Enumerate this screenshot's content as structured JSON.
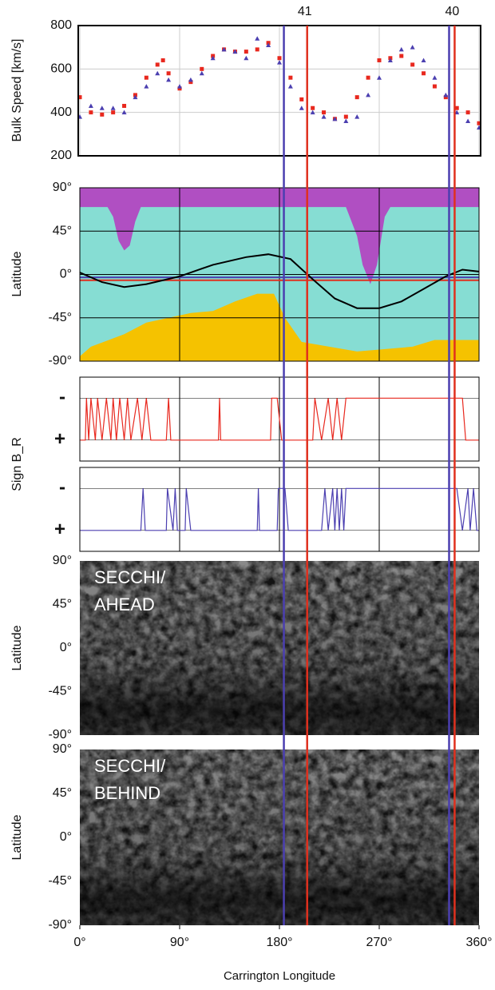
{
  "chart_data": [
    {
      "type": "scatter",
      "ylabel": "Bulk Speed [km/s]",
      "xlim": [
        0,
        360
      ],
      "ylim": [
        200,
        800
      ],
      "yticks": [
        200,
        400,
        600,
        800
      ],
      "grid": true,
      "series": [
        {
          "color": "#e8281e",
          "x": [
            0,
            10,
            20,
            30,
            40,
            50,
            60,
            70,
            75,
            80,
            90,
            100,
            110,
            120,
            130,
            140,
            150,
            160,
            170,
            180,
            190,
            200,
            210,
            220,
            230,
            240,
            250,
            260,
            270,
            280,
            290,
            300,
            310,
            320,
            330,
            340,
            350,
            360
          ],
          "values": [
            470,
            400,
            390,
            400,
            430,
            480,
            560,
            620,
            640,
            580,
            510,
            540,
            600,
            660,
            690,
            680,
            680,
            690,
            720,
            650,
            560,
            460,
            420,
            400,
            370,
            380,
            470,
            560,
            640,
            650,
            660,
            620,
            580,
            520,
            470,
            420,
            400,
            350
          ]
        },
        {
          "color": "#4b3fb0",
          "x": [
            0,
            10,
            20,
            30,
            40,
            50,
            60,
            70,
            80,
            90,
            100,
            110,
            120,
            130,
            140,
            150,
            160,
            170,
            180,
            190,
            200,
            210,
            220,
            230,
            240,
            250,
            260,
            270,
            280,
            290,
            300,
            310,
            320,
            330,
            340,
            350,
            360
          ],
          "values": [
            380,
            430,
            420,
            420,
            400,
            470,
            520,
            580,
            550,
            520,
            550,
            580,
            650,
            690,
            680,
            650,
            740,
            710,
            630,
            520,
            420,
            400,
            380,
            370,
            360,
            380,
            480,
            560,
            640,
            690,
            700,
            640,
            560,
            480,
            400,
            360,
            330
          ]
        }
      ],
      "vertical_lines": [
        {
          "x": 184,
          "color": "#4b3fb0"
        },
        {
          "x": 205,
          "color": "#e0301e",
          "label": "41"
        },
        {
          "x": 333,
          "color": "#4b3fb0"
        },
        {
          "x": 338,
          "color": "#e0301e",
          "label": "40"
        }
      ]
    },
    {
      "type": "map",
      "ylabel": "Latitude",
      "xlim": [
        0,
        360
      ],
      "ylim": [
        -90,
        90
      ],
      "yticks": [
        {
          "value": 90,
          "label": "90°"
        },
        {
          "value": 45,
          "label": "45°"
        },
        {
          "value": 0,
          "label": "0°"
        },
        {
          "value": -45,
          "label": "-45°"
        },
        {
          "value": -90,
          "label": "-90°"
        }
      ],
      "field_color": "#86ddd3",
      "north_region": {
        "color": "#b04fc2",
        "x": [
          0,
          25,
          30,
          35,
          40,
          45,
          50,
          55,
          240,
          250,
          255,
          262,
          268,
          275,
          280,
          360
        ],
        "values": [
          70,
          70,
          60,
          35,
          25,
          30,
          55,
          70,
          70,
          40,
          10,
          -10,
          10,
          60,
          70,
          70
        ]
      },
      "south_region": {
        "color": "#f5c200",
        "x": [
          0,
          10,
          40,
          60,
          80,
          100,
          120,
          140,
          160,
          175,
          185,
          200,
          250,
          300,
          320,
          360
        ],
        "values": [
          -85,
          -75,
          -62,
          -50,
          -45,
          -40,
          -38,
          -28,
          -20,
          -20,
          -45,
          -70,
          -80,
          -75,
          -68,
          -68
        ]
      },
      "neutral_line": {
        "color": "#000000",
        "x": [
          0,
          20,
          40,
          60,
          90,
          120,
          150,
          170,
          190,
          210,
          230,
          250,
          270,
          290,
          310,
          330,
          345,
          360
        ],
        "values": [
          2,
          -8,
          -13,
          -10,
          -2,
          10,
          18,
          21,
          16,
          -5,
          -25,
          -35,
          -35,
          -28,
          -15,
          -2,
          5,
          3
        ]
      },
      "hlines": [
        {
          "value": -3,
          "color": "#4b3fb0"
        },
        {
          "value": -6,
          "color": "#e0301e"
        }
      ]
    },
    {
      "type": "step",
      "ylabel": "Sign B_R",
      "xlim": [
        0,
        360
      ],
      "ylim": [
        2,
        -2
      ],
      "yticks": [
        {
          "value": -1,
          "label": "-"
        },
        {
          "value": 1,
          "label": "+"
        }
      ],
      "series": [
        {
          "color": "#e8281e",
          "x": [
            0,
            5,
            6,
            8,
            10,
            14,
            16,
            20,
            24,
            28,
            30,
            33,
            36,
            40,
            43,
            46,
            52,
            56,
            60,
            64,
            78,
            80,
            82,
            125,
            126,
            127,
            172,
            173,
            178,
            182,
            210,
            212,
            218,
            224,
            228,
            232,
            236,
            240,
            345,
            348,
            360
          ],
          "values": [
            1,
            1,
            -1,
            1,
            -1,
            1,
            -1,
            1,
            -1,
            1,
            -1,
            1,
            -1,
            1,
            -1,
            1,
            -1,
            1,
            -1,
            1,
            1,
            -1,
            1,
            1,
            -1,
            1,
            1,
            -1,
            -1,
            1,
            1,
            -1,
            1,
            -1,
            1,
            -1,
            1,
            -1,
            -1,
            1,
            1
          ]
        }
      ]
    },
    {
      "type": "step",
      "xlim": [
        0,
        360
      ],
      "ylim": [
        2,
        -2
      ],
      "yticks": [
        {
          "value": -1,
          "label": "-"
        },
        {
          "value": 1,
          "label": "+"
        }
      ],
      "series": [
        {
          "color": "#4b3fb0",
          "x": [
            0,
            55,
            57,
            59,
            78,
            79,
            84,
            86,
            88,
            95,
            96,
            100,
            160,
            161,
            162,
            178,
            179,
            185,
            188,
            218,
            221,
            224,
            228,
            230,
            232,
            234,
            236,
            238,
            240,
            340,
            345,
            350,
            352,
            355,
            358,
            360
          ],
          "values": [
            1,
            1,
            -1,
            1,
            1,
            -1,
            1,
            -1,
            1,
            1,
            -1,
            1,
            1,
            -1,
            1,
            1,
            -1,
            -1,
            1,
            1,
            -1,
            1,
            -1,
            1,
            -1,
            1,
            -1,
            1,
            -1,
            -1,
            1,
            -1,
            1,
            -1,
            1,
            1
          ]
        }
      ]
    },
    {
      "type": "image",
      "ylabel": "Latitude",
      "title": [
        "SECCHI/",
        "AHEAD"
      ],
      "xlim": [
        0,
        360
      ],
      "ylim": [
        -90,
        90
      ],
      "yticks": [
        {
          "value": 90,
          "label": "90°"
        },
        {
          "value": 45,
          "label": "45°"
        },
        {
          "value": 0,
          "label": "0°"
        },
        {
          "value": -45,
          "label": "-45°"
        },
        {
          "value": -90,
          "label": "-90°"
        }
      ]
    },
    {
      "type": "image",
      "ylabel": "Latitude",
      "title": [
        "SECCHI/",
        "BEHIND"
      ],
      "xlabel": "Carrington Longitude",
      "xlim": [
        0,
        360
      ],
      "ylim": [
        -90,
        90
      ],
      "yticks": [
        {
          "value": 90,
          "label": "90°"
        },
        {
          "value": 45,
          "label": "45°"
        },
        {
          "value": 0,
          "label": "0°"
        },
        {
          "value": -45,
          "label": "-45°"
        },
        {
          "value": -90,
          "label": "-90°"
        }
      ],
      "xticks": [
        {
          "value": 0,
          "label": "0°"
        },
        {
          "value": 90,
          "label": "90°"
        },
        {
          "value": 180,
          "label": "180°"
        },
        {
          "value": 270,
          "label": "270°"
        },
        {
          "value": 360,
          "label": "360°"
        }
      ]
    }
  ]
}
